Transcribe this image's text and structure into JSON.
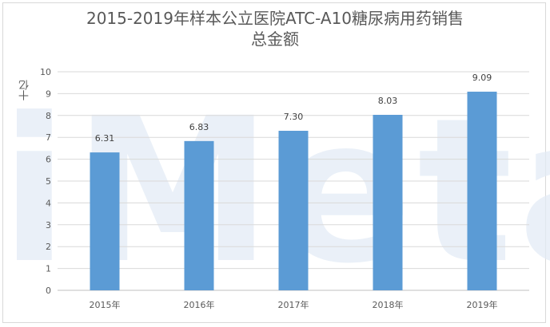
{
  "chart_data": {
    "type": "bar",
    "title_line1": "2015-2019年样本公立医院ATC-A10糖尿病用药销售",
    "title_line2": "总金额",
    "ylabel": "十亿",
    "xlabel": "",
    "categories": [
      "2015年",
      "2016年",
      "2017年",
      "2018年",
      "2019年"
    ],
    "values": [
      6.31,
      6.83,
      7.3,
      8.03,
      9.09
    ],
    "value_labels": [
      "6.31",
      "6.83",
      "7.30",
      "8.03",
      "9.09"
    ],
    "ylim": [
      0,
      10
    ],
    "yticks": [
      "0",
      "1",
      "2",
      "3",
      "4",
      "5",
      "6",
      "7",
      "8",
      "9",
      "10"
    ],
    "grid": true,
    "bar_color": "#5b9bd5",
    "watermark": "iMeta"
  }
}
